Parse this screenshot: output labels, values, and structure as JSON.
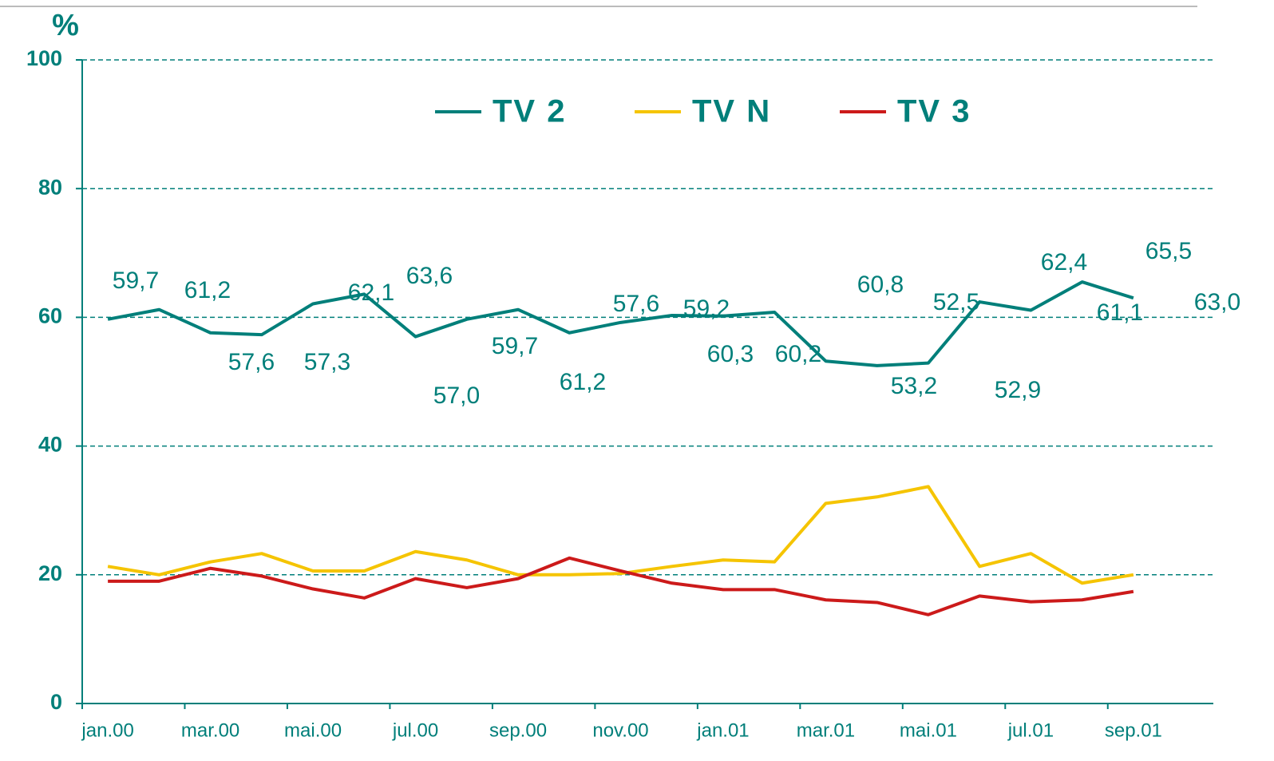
{
  "chart_data": {
    "type": "line",
    "y_label": "%",
    "categories": [
      "jan.00",
      null,
      "mar.00",
      null,
      "mai.00",
      null,
      "jul.00",
      null,
      "sep.00",
      null,
      "nov.00",
      null,
      "jan.01",
      null,
      "mar.01",
      null,
      "mai.01",
      null,
      "jul.01",
      null,
      "sep.01"
    ],
    "series": [
      {
        "name": "TV 2",
        "color": "#007f7a",
        "values": [
          59.7,
          61.2,
          57.6,
          57.3,
          62.1,
          63.6,
          57.0,
          59.7,
          61.2,
          57.6,
          59.2,
          60.3,
          60.2,
          60.8,
          53.2,
          52.5,
          52.9,
          62.4,
          61.1,
          65.5,
          63.0
        ],
        "value_labels": [
          "59,7",
          "61,2",
          "57,6",
          "57,3",
          "62,1",
          "63,6",
          "57,0",
          "59,7",
          "61,2",
          "57,6",
          "59,2",
          "60,3",
          "60,2",
          "60,8",
          "53,2",
          "52,5",
          "52,9",
          "62,4",
          "61,1",
          "65,5",
          "63,0"
        ]
      },
      {
        "name": "TV N",
        "color": "#f5c400",
        "values": [
          21.3,
          20.0,
          22.0,
          23.3,
          20.6,
          20.6,
          23.6,
          22.3,
          20.0,
          20.0,
          20.2,
          21.3,
          22.3,
          22.0,
          31.1,
          32.1,
          33.7,
          21.3,
          23.3,
          18.7,
          20.0
        ]
      },
      {
        "name": "TV 3",
        "color": "#cc1a1a",
        "values": [
          19.0,
          19.0,
          21.0,
          19.8,
          17.8,
          16.4,
          19.4,
          18.0,
          19.4,
          22.6,
          20.6,
          18.7,
          17.7,
          17.7,
          16.1,
          15.7,
          13.8,
          16.7,
          15.8,
          16.1,
          17.4
        ]
      }
    ],
    "ylim": [
      0,
      100
    ],
    "yticks": [
      0,
      20,
      40,
      60,
      80,
      100
    ],
    "grid": true
  }
}
